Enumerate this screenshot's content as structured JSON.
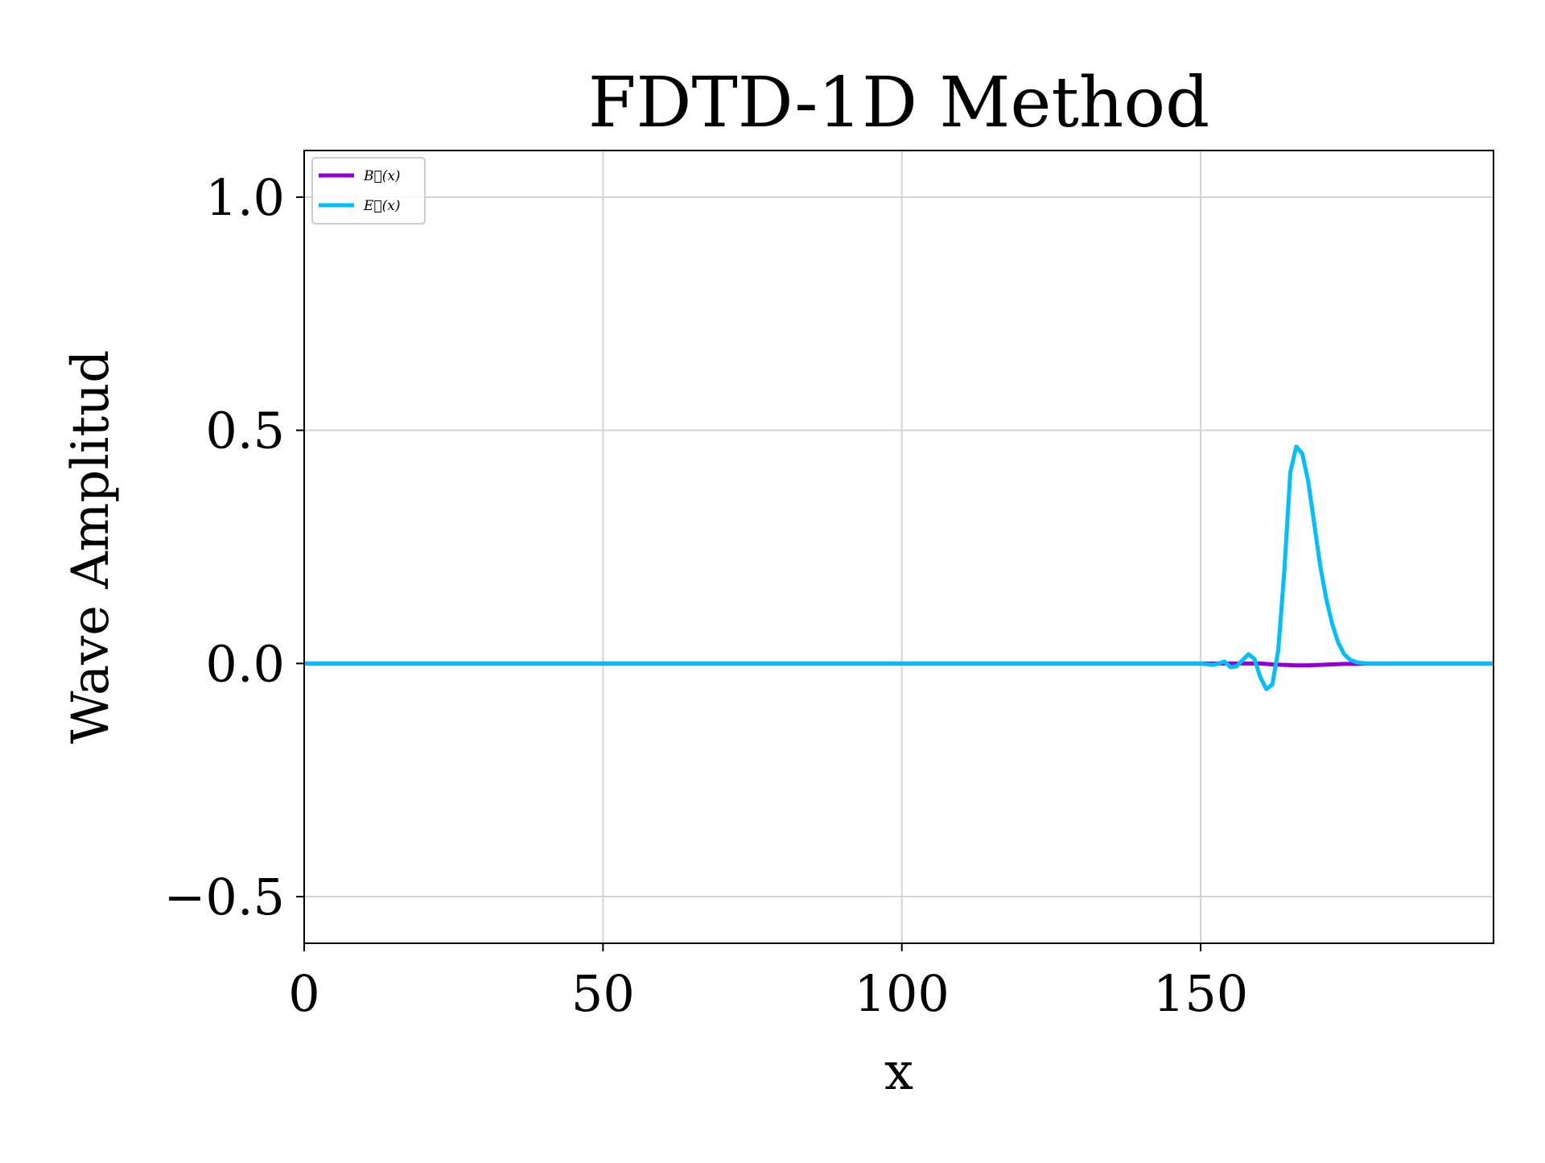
{
  "chart_data": {
    "type": "line",
    "title": "FDTD-1D Method",
    "xlabel": "x",
    "ylabel": "Wave Amplitud",
    "xlim": [
      0,
      199
    ],
    "ylim": [
      -0.6,
      1.1
    ],
    "xticks": [
      0,
      50,
      100,
      150
    ],
    "xtick_labels": [
      "0",
      "50",
      "100",
      "150"
    ],
    "yticks": [
      -0.5,
      0.0,
      0.5,
      1.0
    ],
    "ytick_labels": [
      "−0.5",
      "0.0",
      "0.5",
      "1.0"
    ],
    "grid": true,
    "legend_position": "top-left",
    "series": [
      {
        "name": "B⃗(x)",
        "color": "#9400d3",
        "x": [
          0,
          150,
          152,
          154,
          156,
          158,
          160,
          162,
          164,
          166,
          168,
          170,
          172,
          174,
          176,
          178,
          180,
          182,
          199
        ],
        "y": [
          0.0,
          0.0,
          0.0,
          0.0,
          0.0,
          0.0,
          0.0,
          -0.002,
          -0.003,
          -0.004,
          -0.004,
          -0.003,
          -0.002,
          -0.001,
          -0.001,
          0.0,
          0.0,
          0.0,
          0.0
        ]
      },
      {
        "name": "E⃗(x)",
        "color": "#00bfff",
        "x": [
          0,
          150,
          152,
          153,
          154,
          155,
          156,
          157,
          158,
          159,
          160,
          161,
          162,
          163,
          164,
          165,
          166,
          167,
          168,
          169,
          170,
          171,
          172,
          173,
          174,
          175,
          176,
          177,
          178,
          179,
          180,
          182,
          199
        ],
        "y": [
          0.0,
          0.0,
          -0.003,
          0.0,
          0.004,
          -0.008,
          -0.006,
          0.007,
          0.02,
          0.01,
          -0.03,
          -0.055,
          -0.045,
          0.03,
          0.2,
          0.41,
          0.465,
          0.45,
          0.39,
          0.3,
          0.21,
          0.14,
          0.085,
          0.045,
          0.02,
          0.008,
          0.003,
          0.001,
          0.0,
          0.0,
          0.0,
          0.0,
          0.0
        ]
      }
    ]
  }
}
